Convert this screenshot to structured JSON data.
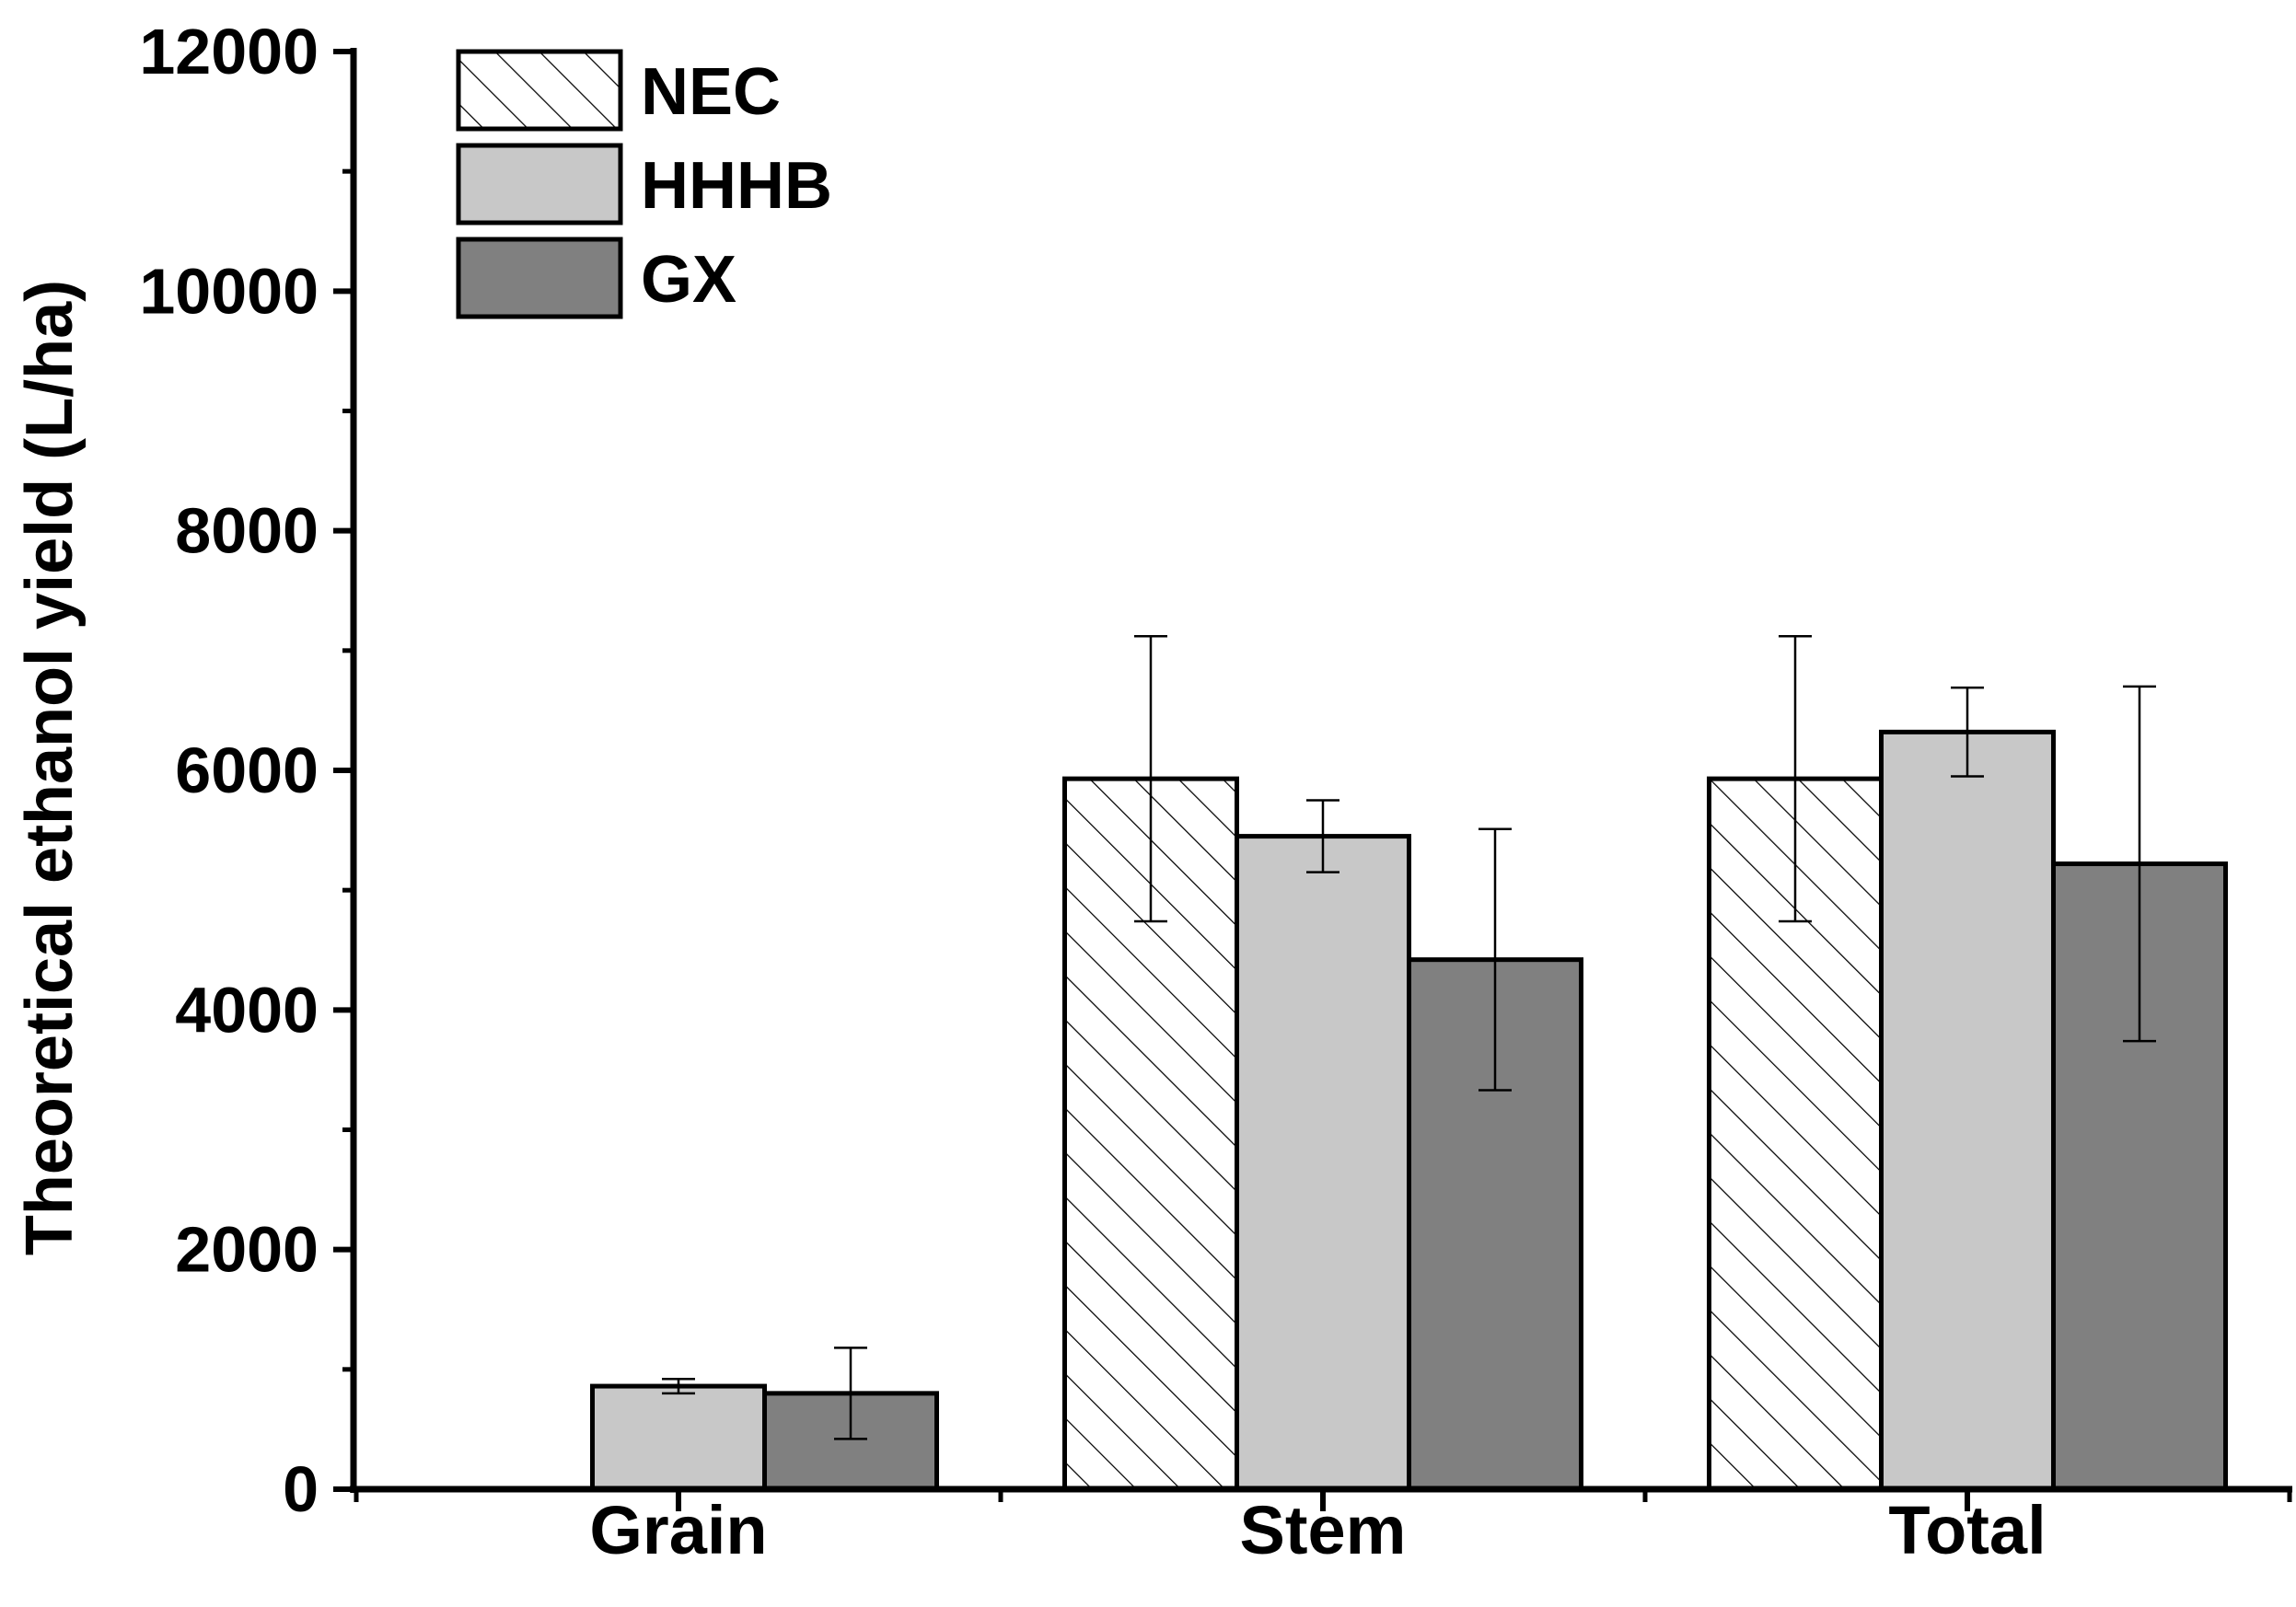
{
  "chart_data": {
    "type": "bar",
    "title": "",
    "xlabel": "",
    "ylabel": "Theoretical ethanol yield (L/ha)",
    "ylim": [
      0,
      12000
    ],
    "yticks": [
      0,
      2000,
      4000,
      6000,
      8000,
      10000,
      12000
    ],
    "categories": [
      "Grain",
      "Stem",
      "Total"
    ],
    "legend_position": "top-left",
    "series": [
      {
        "name": "NEC",
        "style": "hatched",
        "fill": "#ffffff",
        "values": [
          0,
          5930,
          5930
        ],
        "errors": [
          0,
          1190,
          1190
        ]
      },
      {
        "name": "HHHB",
        "style": "solid",
        "fill": "#c8c8c8",
        "values": [
          860,
          5450,
          6320
        ],
        "errors": [
          60,
          300,
          370
        ]
      },
      {
        "name": "GX",
        "style": "solid",
        "fill": "#808080",
        "values": [
          800,
          4420,
          5220
        ],
        "errors": [
          380,
          1090,
          1480
        ]
      }
    ]
  }
}
